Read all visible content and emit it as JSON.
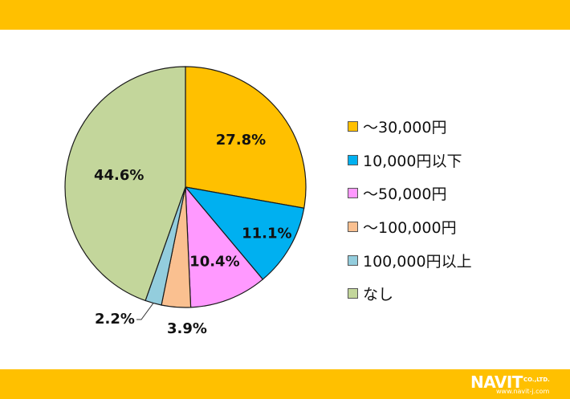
{
  "colors": {
    "band": "#FFC000",
    "slice_border": "#1a1a1a",
    "series": [
      "#FFC000",
      "#00B0F0",
      "#FF99FF",
      "#FAC090",
      "#93CDDD",
      "#C3D69B"
    ]
  },
  "chart_data": {
    "type": "pie",
    "title": "",
    "start_angle_deg": 0,
    "direction": "clockwise",
    "legend_position": "right",
    "categories": [
      "～30,000円",
      "10,000円以下",
      "～50,000円",
      "～100,000円",
      "100,000円以上",
      "なし"
    ],
    "values": [
      27.8,
      11.1,
      10.4,
      3.9,
      2.2,
      44.6
    ],
    "data_labels": [
      "27.8%",
      "11.1%",
      "10.4%",
      "3.9%",
      "2.2%",
      "44.6%"
    ]
  },
  "logo": {
    "brand": "NAVIT",
    "suffix": "CO.,LTD.",
    "url": "www.navit-j.com"
  }
}
